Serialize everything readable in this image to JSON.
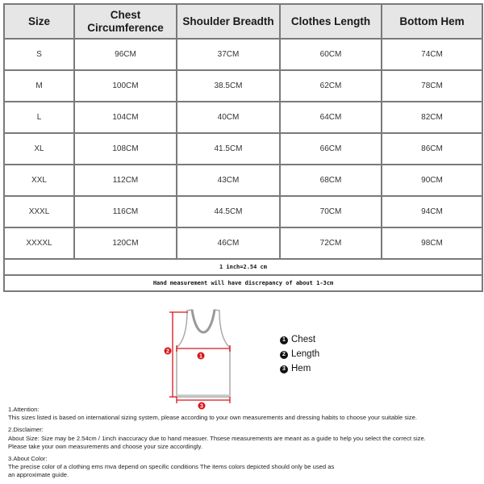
{
  "table": {
    "headers": [
      "Size",
      "Chest Circumference",
      "Shoulder Breadth",
      "Clothes Length",
      "Bottom Hem"
    ],
    "rows": [
      [
        "S",
        "96CM",
        "37CM",
        "60CM",
        "74CM"
      ],
      [
        "M",
        "100CM",
        "38.5CM",
        "62CM",
        "78CM"
      ],
      [
        "L",
        "104CM",
        "40CM",
        "64CM",
        "82CM"
      ],
      [
        "XL",
        "108CM",
        "41.5CM",
        "66CM",
        "86CM"
      ],
      [
        "XXL",
        "112CM",
        "43CM",
        "68CM",
        "90CM"
      ],
      [
        "XXXL",
        "116CM",
        "44.5CM",
        "70CM",
        "94CM"
      ],
      [
        "XXXXL",
        "120CM",
        "46CM",
        "72CM",
        "98CM"
      ]
    ],
    "conversion_note": "1 inch=2.54 cm",
    "discrepancy_note": "Hand measurement will have discrepancy of about 1-3cm"
  },
  "diagram": {
    "marker_color": "#d9141b",
    "markers": [
      "1",
      "2",
      "3"
    ],
    "legend": [
      {
        "num": "1",
        "label": "Chest"
      },
      {
        "num": "2",
        "label": "Length"
      },
      {
        "num": "3",
        "label": "Hem"
      }
    ]
  },
  "notes": [
    {
      "title": "1.Attention:",
      "lines": [
        "This sizes listed is based on international sizing system, please according to your own measurements and dressing habits to choose your suitable size."
      ]
    },
    {
      "title": "2.Disclaimer:",
      "lines": [
        "About Size: Size may be 2.54cm / 1inch inaccuracy due to hand measuer. Thsese measurements are meant as a guide to help you select the correct size.",
        "Please take your own measurements and choose your size accordingly."
      ]
    },
    {
      "title": "3.About Color:",
      "lines": [
        "The precise color of a clothing ems mva depend on specific conditions The items colors depicted should only be used as",
        "an approximate guide."
      ]
    }
  ]
}
